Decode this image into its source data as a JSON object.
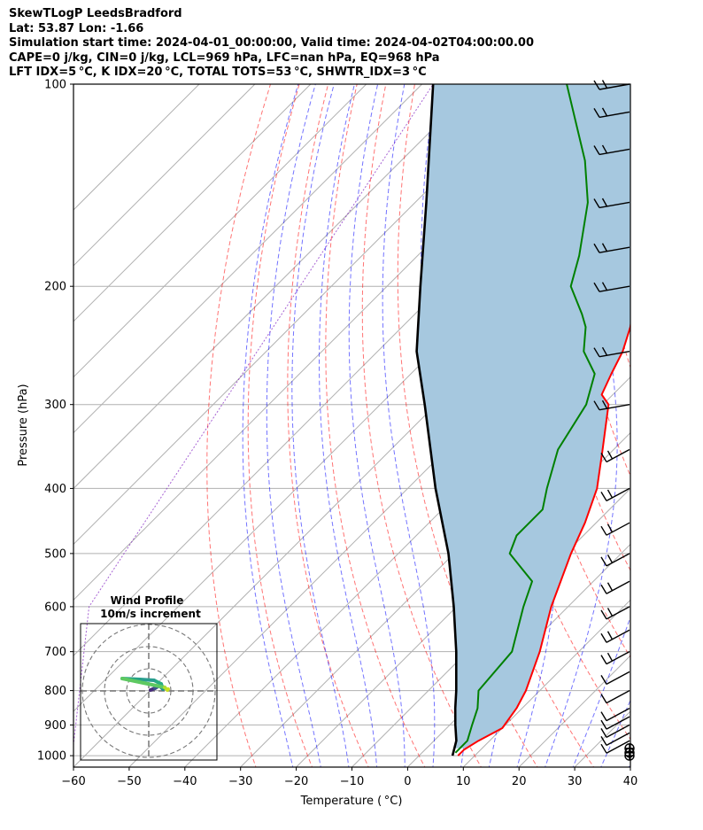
{
  "header": {
    "line1": "SkewTLogP LeedsBradford",
    "line2": "Lat: 53.87   Lon: -1.66",
    "line3": "Simulation start time: 2024-04-01_00:00:00, Valid time: 2024-04-02T04:00:00.00",
    "line4": "CAPE=0 j/kg, CIN=0 j/kg, LCL=969 hPa, LFC=nan hPa, EQ=968 hPa",
    "line5": "LFT IDX=5 °C, K IDX=20 °C, TOTAL TOTS=53 °C, SHWTR_IDX=3 °C"
  },
  "chart_data": {
    "type": "line",
    "xlabel": "Temperature ( °C)",
    "ylabel": "Pressure (hPa)",
    "xlim": [
      -60,
      40
    ],
    "ylim": [
      1040,
      100
    ],
    "y_scale": "log",
    "x_ticks": [
      "−60",
      "−50",
      "−40",
      "−30",
      "−20",
      "−10",
      "0",
      "10",
      "20",
      "30",
      "40"
    ],
    "y_ticks": [
      "100",
      "200",
      "300",
      "400",
      "500",
      "600",
      "700",
      "800",
      "900",
      "1000"
    ],
    "grid": true,
    "series": [
      {
        "key": "temperature",
        "color": "#ff0000",
        "points": [
          [
            1000,
            7
          ],
          [
            980,
            7
          ],
          [
            950,
            8
          ],
          [
            910,
            10
          ],
          [
            850,
            9
          ],
          [
            800,
            7.5
          ],
          [
            700,
            3
          ],
          [
            600,
            -3
          ],
          [
            500,
            -9
          ],
          [
            450,
            -12
          ],
          [
            400,
            -16
          ],
          [
            350,
            -22
          ],
          [
            300,
            -29
          ],
          [
            290,
            -32
          ],
          [
            270,
            -34
          ],
          [
            250,
            -36
          ],
          [
            230,
            -39
          ],
          [
            210,
            -43
          ],
          [
            200,
            -45
          ],
          [
            180,
            -50
          ],
          [
            170,
            -52
          ],
          [
            160,
            -55
          ],
          [
            150,
            -58
          ],
          [
            140,
            -62
          ],
          [
            130,
            -66
          ],
          [
            120,
            -70
          ],
          [
            110,
            -75
          ],
          [
            100,
            -80
          ]
        ]
      },
      {
        "key": "dewpoint",
        "color": "#008000",
        "points": [
          [
            990,
            6
          ],
          [
            950,
            6
          ],
          [
            900,
            4
          ],
          [
            850,
            2
          ],
          [
            800,
            -1
          ],
          [
            700,
            -2
          ],
          [
            600,
            -8
          ],
          [
            550,
            -11
          ],
          [
            500,
            -20
          ],
          [
            470,
            -22
          ],
          [
            450,
            -22
          ],
          [
            430,
            -22
          ],
          [
            400,
            -25
          ],
          [
            350,
            -30
          ],
          [
            300,
            -33
          ],
          [
            270,
            -37
          ],
          [
            250,
            -43
          ],
          [
            230,
            -47
          ],
          [
            220,
            -50
          ],
          [
            200,
            -57
          ],
          [
            180,
            -61
          ],
          [
            150,
            -69
          ],
          [
            130,
            -77
          ],
          [
            100,
            -94
          ]
        ]
      },
      {
        "key": "parcel",
        "color": "#000000",
        "points": [
          [
            1000,
            6
          ],
          [
            950,
            4
          ],
          [
            900,
            1
          ],
          [
            850,
            -2
          ],
          [
            800,
            -5
          ],
          [
            700,
            -12
          ],
          [
            600,
            -20.5
          ],
          [
            500,
            -31
          ],
          [
            400,
            -45
          ],
          [
            300,
            -62
          ],
          [
            250,
            -73
          ],
          [
            200,
            -84
          ],
          [
            150,
            -98
          ],
          [
            100,
            -118
          ]
        ]
      }
    ],
    "wind_barbs": {
      "color": "#000000",
      "pressures": [
        1000,
        990,
        975,
        950,
        925,
        900,
        875,
        850,
        800,
        750,
        700,
        650,
        600,
        550,
        500,
        450,
        400,
        350,
        300,
        250,
        200,
        175,
        150,
        125,
        110,
        100
      ]
    },
    "hodograph": {
      "title": "Wind Profile",
      "subtitle": "10m/s increment",
      "rings": 3
    }
  }
}
